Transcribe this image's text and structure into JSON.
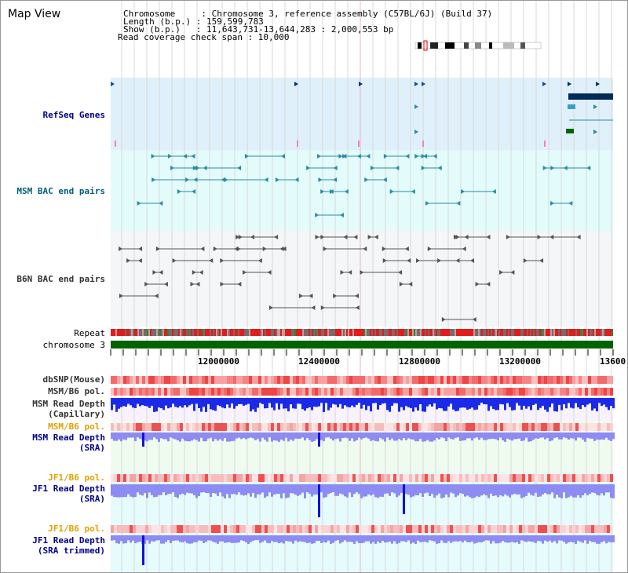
{
  "view": {
    "title": "Map View"
  },
  "header": {
    "line1": "Chromosome     : Chromosome 3, reference assembly (C57BL/6J) (Build 37)",
    "line2": "Length (b.p.) : 159,599,783",
    "line3": "Show (b.p.)   : 11,643,731-13,644,283 : 2,000,553 bp",
    "line4": "Read coverage check span : 10,000"
  },
  "tracks": {
    "refseq": "RefSeq Genes",
    "msm_bac": "MSM BAC end pairs",
    "b6n_bac": "B6N BAC end pairs",
    "repeat": "Repeat",
    "chromosome": "chromosome 3",
    "dbsnp": "dbSNP(Mouse)",
    "msm_b6_pol": "MSM/B6 pol.",
    "msm_depth_cap_1": "MSM Read Depth",
    "msm_depth_cap_2": "(Capillary)",
    "msm_b6_pol2": "MSM/B6 pol.",
    "msm_depth_sra_1": "MSM Read Depth",
    "msm_depth_sra_2": "(SRA)",
    "jf1_b6_pol": "JF1/B6 pol.",
    "jf1_depth_sra_1": "JF1 Read Depth",
    "jf1_depth_sra_2": "(SRA)",
    "jf1_b6_pol2": "JF1/B6 pol.",
    "jf1_depth_trim_1": "JF1 Read Depth",
    "jf1_depth_trim_2": "(SRA trimmed)"
  },
  "axis": {
    "ticks": [
      "12000000",
      "12400000",
      "12800000",
      "13200000",
      "13600"
    ]
  },
  "colors": {
    "refseq_bg": "#dff0fa",
    "msm_bg": "#e3fbfb",
    "b6n_bg": "#f4f6f8",
    "chrom": "#006400",
    "depth_msm": "#1a2ae6",
    "depth_light": "#8c8cf2",
    "teal": "#2a8ca0"
  }
}
